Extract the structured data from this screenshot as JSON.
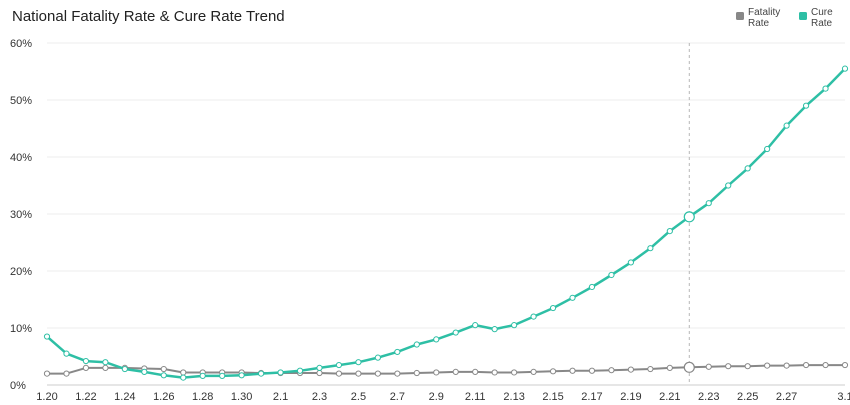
{
  "chart_data": {
    "type": "line",
    "title": "National Fatality Rate & Cure Rate Trend",
    "xlabel": "",
    "ylabel": "",
    "ylim": [
      0,
      60
    ],
    "yticks": [
      "0%",
      "10%",
      "20%",
      "30%",
      "40%",
      "50%",
      "60%"
    ],
    "x": [
      "1.20",
      "1.21",
      "1.22",
      "1.23",
      "1.24",
      "1.25",
      "1.26",
      "1.27",
      "1.28",
      "1.29",
      "1.30",
      "1.31",
      "2.1",
      "2.2",
      "2.3",
      "2.4",
      "2.5",
      "2.6",
      "2.7",
      "2.8",
      "2.9",
      "2.10",
      "2.11",
      "2.12",
      "2.13",
      "2.14",
      "2.15",
      "2.16",
      "2.17",
      "2.18",
      "2.19",
      "2.20",
      "2.21",
      "2.22",
      "2.23",
      "2.24",
      "2.25",
      "2.26",
      "2.27",
      "2.28",
      "2.29",
      "3.1"
    ],
    "xtick_labels": [
      "1.20",
      "1.22",
      "1.24",
      "1.26",
      "1.28",
      "1.30",
      "2.1",
      "2.3",
      "2.5",
      "2.7",
      "2.9",
      "2.11",
      "2.13",
      "2.15",
      "2.17",
      "2.19",
      "2.21",
      "2.23",
      "2.25",
      "2.27",
      "3.1"
    ],
    "grid": true,
    "legend_position": "top-right",
    "highlight_x": "2.22",
    "series": [
      {
        "name": "Fatality Rate",
        "color": "#888888",
        "values": [
          2.0,
          2.0,
          3.0,
          3.0,
          3.0,
          2.9,
          2.8,
          2.2,
          2.2,
          2.2,
          2.2,
          2.1,
          2.1,
          2.1,
          2.1,
          2.0,
          2.0,
          2.0,
          2.0,
          2.1,
          2.2,
          2.3,
          2.3,
          2.2,
          2.2,
          2.3,
          2.4,
          2.5,
          2.5,
          2.6,
          2.7,
          2.8,
          3.0,
          3.1,
          3.2,
          3.3,
          3.3,
          3.4,
          3.4,
          3.5,
          3.5,
          3.5
        ]
      },
      {
        "name": "Cure Rate",
        "color": "#2ebfa5",
        "values": [
          8.5,
          5.5,
          4.2,
          4.0,
          2.8,
          2.3,
          1.7,
          1.3,
          1.6,
          1.6,
          1.7,
          2.0,
          2.2,
          2.5,
          3.0,
          3.5,
          4.0,
          4.8,
          5.8,
          7.1,
          8.0,
          9.2,
          10.5,
          9.8,
          10.5,
          12.0,
          13.5,
          15.3,
          17.2,
          19.3,
          21.5,
          24.0,
          27.0,
          29.5,
          31.9,
          35.0,
          38.0,
          41.4,
          45.5,
          49.0,
          52.0,
          55.5
        ]
      }
    ]
  }
}
